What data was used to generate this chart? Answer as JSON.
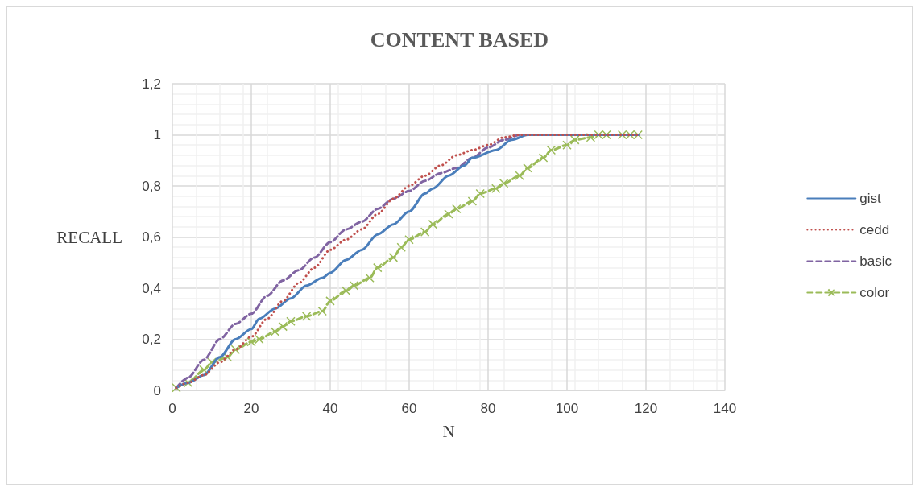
{
  "chart_data": {
    "type": "line",
    "title": "CONTENT BASED",
    "xlabel": "N",
    "ylabel": "RECALL",
    "xlim": [
      0,
      140
    ],
    "xticks": [
      0,
      20,
      40,
      60,
      80,
      100,
      120,
      140
    ],
    "ylim": [
      0,
      1.2
    ],
    "yticks": [
      0,
      {
        "value": 0.2,
        "label": "0,2"
      },
      {
        "value": 0.4,
        "label": "0,4"
      },
      {
        "value": 0.6,
        "label": "0,6"
      },
      {
        "value": 0.8,
        "label": "0,8"
      },
      1,
      {
        "value": 1.2,
        "label": "1,2"
      }
    ],
    "grid": true,
    "legend": "right",
    "marker": "none",
    "series": [
      {
        "name": "gist",
        "color": "#4a7ebb",
        "line_style": "solid",
        "x": [
          1,
          4,
          8,
          12,
          16,
          20,
          22,
          26,
          30,
          34,
          38,
          40,
          44,
          48,
          52,
          56,
          60,
          64,
          66,
          70,
          74,
          76,
          82,
          86,
          90,
          100,
          118
        ],
        "values": [
          0.01,
          0.03,
          0.06,
          0.13,
          0.2,
          0.24,
          0.28,
          0.32,
          0.36,
          0.41,
          0.44,
          0.46,
          0.51,
          0.55,
          0.61,
          0.65,
          0.7,
          0.77,
          0.79,
          0.84,
          0.88,
          0.91,
          0.94,
          0.98,
          1,
          1,
          1
        ]
      },
      {
        "name": "cedd",
        "color": "#c0504d",
        "line_style": "dotted",
        "x": [
          1,
          4,
          8,
          12,
          16,
          20,
          24,
          28,
          32,
          36,
          40,
          44,
          48,
          52,
          56,
          60,
          64,
          68,
          72,
          76,
          80,
          84,
          88,
          118
        ],
        "values": [
          0.01,
          0.03,
          0.06,
          0.11,
          0.16,
          0.21,
          0.28,
          0.35,
          0.42,
          0.48,
          0.55,
          0.59,
          0.63,
          0.69,
          0.75,
          0.8,
          0.84,
          0.88,
          0.92,
          0.94,
          0.96,
          0.99,
          1,
          1
        ]
      },
      {
        "name": "basic",
        "color": "#8064a2",
        "line_style": "dashed",
        "x": [
          1,
          4,
          8,
          12,
          16,
          20,
          24,
          28,
          32,
          36,
          40,
          44,
          48,
          52,
          56,
          60,
          64,
          68,
          72,
          76,
          80,
          84,
          88,
          118
        ],
        "values": [
          0.01,
          0.05,
          0.12,
          0.2,
          0.26,
          0.3,
          0.37,
          0.43,
          0.47,
          0.52,
          0.58,
          0.63,
          0.66,
          0.71,
          0.75,
          0.78,
          0.82,
          0.85,
          0.87,
          0.91,
          0.95,
          0.98,
          1,
          1
        ]
      },
      {
        "name": "color",
        "color": "#9bbb59",
        "line_style": "dashed",
        "marker": "cross",
        "x": [
          1,
          4,
          8,
          10,
          14,
          16,
          20,
          22,
          26,
          28,
          30,
          34,
          38,
          40,
          44,
          46,
          50,
          52,
          56,
          58,
          60,
          64,
          66,
          70,
          72,
          76,
          78,
          82,
          84,
          88,
          90,
          94,
          96,
          100,
          102,
          106,
          108,
          110,
          114,
          116,
          118
        ],
        "values": [
          0.01,
          0.03,
          0.08,
          0.11,
          0.13,
          0.16,
          0.19,
          0.2,
          0.23,
          0.25,
          0.27,
          0.29,
          0.31,
          0.35,
          0.39,
          0.41,
          0.44,
          0.48,
          0.52,
          0.56,
          0.59,
          0.62,
          0.65,
          0.69,
          0.71,
          0.74,
          0.77,
          0.79,
          0.81,
          0.84,
          0.87,
          0.91,
          0.94,
          0.96,
          0.98,
          0.99,
          1,
          1,
          1,
          1,
          1
        ]
      }
    ]
  }
}
